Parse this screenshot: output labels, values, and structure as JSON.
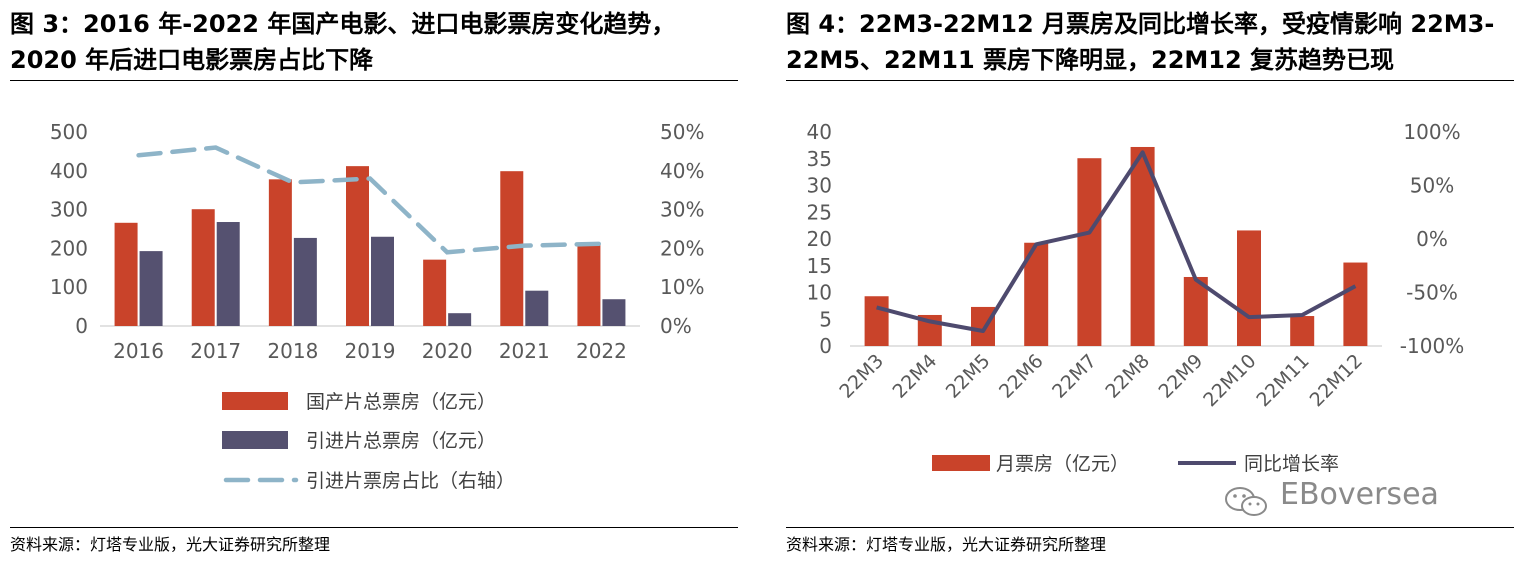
{
  "left": {
    "title": "图 3：2016 年-2022 年国产电影、进口电影票房变化趋势，2020 年后进口电影票房占比下降",
    "source": "资料来源：灯塔专业版，光大证券研究所整理"
  },
  "right": {
    "title": "图 4：22M3-22M12 月票房及同比增长率，受疫情影响 22M3-22M5、22M11 票房下降明显，22M12 复苏趋势已现",
    "source": "资料来源：灯塔专业版，光大证券研究所整理"
  },
  "watermark": "EBoversea",
  "colors": {
    "red": "#C9432A",
    "navy": "#555170",
    "lightblue": "#8EB4C8",
    "line": "#4E4A6E",
    "axis": "#d9d9d9"
  },
  "chart_data": [
    {
      "type": "bar",
      "categories": [
        "2016",
        "2017",
        "2018",
        "2019",
        "2020",
        "2021",
        "2022"
      ],
      "series": [
        {
          "name": "国产片总票房（亿元）",
          "type": "bar",
          "axis": "left",
          "values": [
            266,
            301,
            378,
            412,
            171,
            399,
            213
          ]
        },
        {
          "name": "引进片总票房（亿元）",
          "type": "bar",
          "axis": "left",
          "values": [
            193,
            268,
            227,
            230,
            33,
            91,
            69
          ]
        },
        {
          "name": "引进片票房占比（右轴）",
          "type": "line",
          "style": "dashed",
          "axis": "right",
          "values": [
            44,
            46,
            37,
            38,
            19,
            20.7,
            21.2
          ]
        }
      ],
      "y_left": {
        "min": 0,
        "max": 500,
        "ticks": [
          "0",
          "100",
          "200",
          "300",
          "400",
          "500"
        ]
      },
      "y_right": {
        "min": 0,
        "max": 50,
        "ticks": [
          "0%",
          "10%",
          "20%",
          "30%",
          "40%",
          "50%"
        ]
      },
      "legend_position": "bottom"
    },
    {
      "type": "bar",
      "categories": [
        "22M3",
        "22M4",
        "22M5",
        "22M6",
        "22M7",
        "22M8",
        "22M9",
        "22M10",
        "22M11",
        "22M12"
      ],
      "series": [
        {
          "name": "月票房（亿元）",
          "type": "bar",
          "axis": "left",
          "values": [
            9.3,
            5.8,
            7.3,
            19.3,
            35.1,
            37.2,
            12.9,
            21.6,
            5.6,
            15.6
          ]
        },
        {
          "name": "同比增长率",
          "type": "line",
          "axis": "right",
          "values": [
            -64,
            -77,
            -86,
            -5,
            6,
            81,
            -38,
            -73,
            -71,
            -44
          ]
        }
      ],
      "y_left": {
        "min": 0,
        "max": 40,
        "ticks": [
          "0",
          "5",
          "10",
          "15",
          "20",
          "25",
          "30",
          "35",
          "40"
        ]
      },
      "y_right": {
        "min": -100,
        "max": 100,
        "ticks": [
          "-100%",
          "-50%",
          "0%",
          "50%",
          "100%"
        ]
      },
      "legend_position": "bottom"
    }
  ]
}
